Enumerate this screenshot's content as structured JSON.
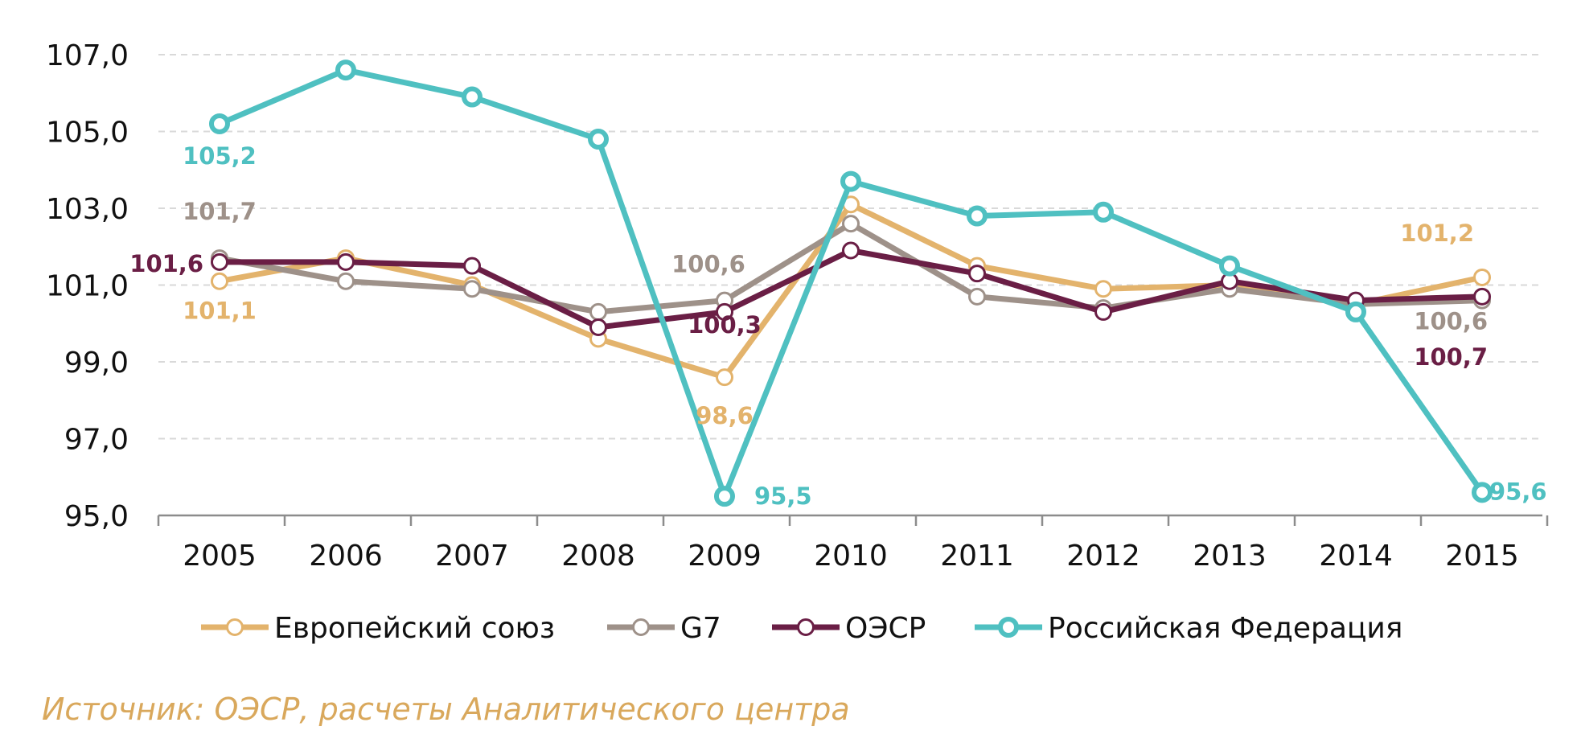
{
  "chart_data": {
    "type": "line",
    "title": "",
    "xlabel": "",
    "ylabel": "",
    "x": [
      "2005",
      "2006",
      "2007",
      "2008",
      "2009",
      "2010",
      "2011",
      "2012",
      "2013",
      "2014",
      "2015"
    ],
    "ylim": [
      95.0,
      107.0
    ],
    "yticks": [
      "95,0",
      "97,0",
      "99,0",
      "101,0",
      "103,0",
      "105,0",
      "107,0"
    ],
    "grid": "horizontal dashed",
    "legend_position": "bottom",
    "series": [
      {
        "name": "Европейский союз",
        "color": "#E3B36C",
        "values": [
          101.1,
          101.7,
          101.0,
          99.6,
          98.6,
          103.1,
          101.5,
          100.9,
          101.0,
          100.5,
          101.2
        ]
      },
      {
        "name": "G7",
        "color": "#9E9189",
        "values": [
          101.7,
          101.1,
          100.9,
          100.3,
          100.6,
          102.6,
          100.7,
          100.4,
          100.9,
          100.5,
          100.6
        ]
      },
      {
        "name": "ОЭСР",
        "color": "#6A1E45",
        "values": [
          101.6,
          101.6,
          101.5,
          99.9,
          100.3,
          101.9,
          101.3,
          100.3,
          101.1,
          100.6,
          100.7
        ]
      },
      {
        "name": "Российская Федерация",
        "color": "#4FC0C1",
        "values": [
          105.2,
          106.6,
          105.9,
          104.8,
          95.5,
          103.7,
          102.8,
          102.9,
          101.5,
          100.3,
          95.6
        ]
      }
    ],
    "annotations": [
      {
        "series": 0,
        "index": 0,
        "text": "101,1"
      },
      {
        "series": 1,
        "index": 0,
        "text": "101,7"
      },
      {
        "series": 2,
        "index": 0,
        "text": "101,6"
      },
      {
        "series": 3,
        "index": 0,
        "text": "105,2"
      },
      {
        "series": 1,
        "index": 4,
        "text": "100,6"
      },
      {
        "series": 2,
        "index": 4,
        "text": "100,3"
      },
      {
        "series": 0,
        "index": 4,
        "text": "98,6"
      },
      {
        "series": 3,
        "index": 4,
        "text": "95,5"
      },
      {
        "series": 0,
        "index": 10,
        "text": "101,2"
      },
      {
        "series": 1,
        "index": 10,
        "text": "100,6"
      },
      {
        "series": 2,
        "index": 10,
        "text": "100,7"
      },
      {
        "series": 3,
        "index": 10,
        "text": "95,6"
      }
    ]
  },
  "source": {
    "text": "Источник: ОЭСР, расчеты Аналитического центра",
    "color": "#D9A85C"
  }
}
